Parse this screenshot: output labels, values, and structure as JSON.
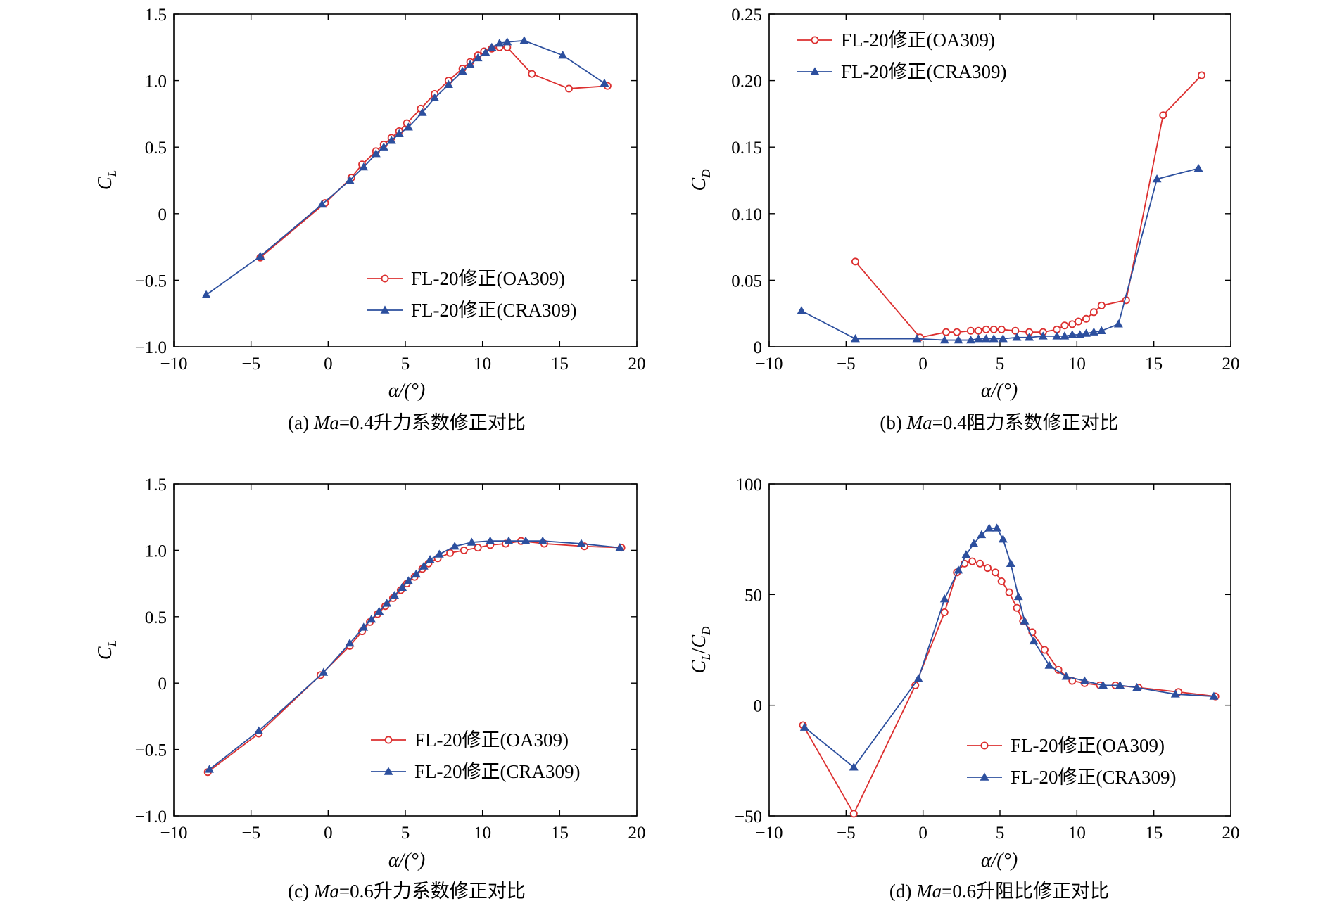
{
  "figure": {
    "colors": {
      "oa309": "#dc2f2f",
      "cra309": "#2c4f9e",
      "axis": "#000000"
    }
  },
  "chart_data": [
    {
      "type": "line",
      "panel": "a",
      "caption": {
        "prefix": "(a) ",
        "mach": "Ma",
        "rest": "=0.4升力系数修正对比"
      },
      "xlabel": "α/(°)",
      "ylabel": {
        "main": "C",
        "sub": "L"
      },
      "xlim": [
        -10,
        20
      ],
      "ylim": [
        -1.0,
        1.5
      ],
      "xticks": [
        -10,
        -5,
        0,
        5,
        10,
        15,
        20
      ],
      "xtick_labels": [
        "−10",
        "−5",
        "0",
        "5",
        "10",
        "15",
        "20"
      ],
      "yticks": [
        -1.0,
        -0.5,
        0,
        0.5,
        1.0,
        1.5
      ],
      "ytick_labels": [
        "−1.0",
        "−0.5",
        "0",
        "0.5",
        "1.0",
        "1.5"
      ],
      "legend_position": "bottom-right",
      "series": [
        {
          "name": "FL-20修正(OA309)",
          "color": "#dc2f2f",
          "marker": "circle",
          "x": [
            -4.4,
            -0.2,
            1.5,
            2.2,
            3.1,
            3.6,
            4.1,
            4.6,
            5.1,
            6.0,
            6.9,
            7.8,
            8.7,
            9.2,
            9.7,
            10.1,
            10.6,
            11.1,
            11.6,
            13.2,
            15.6,
            18.1
          ],
          "y": [
            -0.33,
            0.08,
            0.27,
            0.37,
            0.47,
            0.52,
            0.57,
            0.62,
            0.68,
            0.79,
            0.9,
            1.0,
            1.09,
            1.14,
            1.19,
            1.22,
            1.24,
            1.25,
            1.25,
            1.05,
            0.94,
            0.96
          ]
        },
        {
          "name": "FL-20修正(CRA309)",
          "color": "#2c4f9e",
          "marker": "triangle",
          "x": [
            -7.9,
            -4.4,
            -0.4,
            1.4,
            2.3,
            3.1,
            3.6,
            4.1,
            4.6,
            5.2,
            6.1,
            6.9,
            7.8,
            8.7,
            9.2,
            9.7,
            10.2,
            10.6,
            11.1,
            11.6,
            12.7,
            15.2,
            17.9
          ],
          "y": [
            -0.61,
            -0.32,
            0.07,
            0.25,
            0.35,
            0.45,
            0.5,
            0.55,
            0.6,
            0.65,
            0.76,
            0.87,
            0.97,
            1.07,
            1.12,
            1.17,
            1.21,
            1.25,
            1.28,
            1.29,
            1.3,
            1.19,
            0.98
          ]
        }
      ]
    },
    {
      "type": "line",
      "panel": "b",
      "caption": {
        "prefix": "(b) ",
        "mach": "Ma",
        "rest": "=0.4阻力系数修正对比"
      },
      "xlabel": "α/(°)",
      "ylabel": {
        "main": "C",
        "sub": "D"
      },
      "xlim": [
        -10,
        20
      ],
      "ylim": [
        0,
        0.25
      ],
      "xticks": [
        -10,
        -5,
        0,
        5,
        10,
        15,
        20
      ],
      "xtick_labels": [
        "−10",
        "−5",
        "0",
        "5",
        "10",
        "15",
        "20"
      ],
      "yticks": [
        0,
        0.05,
        0.1,
        0.15,
        0.2,
        0.25
      ],
      "ytick_labels": [
        "0",
        "0.05",
        "0.10",
        "0.15",
        "0.20",
        "0.25"
      ],
      "legend_position": "top-left",
      "series": [
        {
          "name": "FL-20修正(OA309)",
          "color": "#dc2f2f",
          "marker": "circle",
          "x": [
            -4.4,
            -0.2,
            1.5,
            2.2,
            3.1,
            3.6,
            4.1,
            4.6,
            5.1,
            6.0,
            6.9,
            7.8,
            8.7,
            9.2,
            9.7,
            10.1,
            10.6,
            11.1,
            11.6,
            13.2,
            15.6,
            18.1
          ],
          "y": [
            0.064,
            0.007,
            0.011,
            0.011,
            0.012,
            0.012,
            0.013,
            0.013,
            0.013,
            0.012,
            0.011,
            0.011,
            0.013,
            0.016,
            0.017,
            0.019,
            0.021,
            0.026,
            0.031,
            0.035,
            0.174,
            0.204
          ]
        },
        {
          "name": "FL-20修正(CRA309)",
          "color": "#2c4f9e",
          "marker": "triangle",
          "x": [
            -7.9,
            -4.4,
            -0.4,
            1.4,
            2.3,
            3.1,
            3.6,
            4.1,
            4.6,
            5.2,
            6.1,
            6.9,
            7.8,
            8.7,
            9.2,
            9.7,
            10.2,
            10.6,
            11.1,
            11.6,
            12.7,
            15.2,
            17.9
          ],
          "y": [
            0.027,
            0.006,
            0.006,
            0.005,
            0.005,
            0.005,
            0.006,
            0.006,
            0.006,
            0.006,
            0.007,
            0.007,
            0.008,
            0.008,
            0.008,
            0.009,
            0.009,
            0.01,
            0.011,
            0.012,
            0.017,
            0.126,
            0.134
          ]
        }
      ]
    },
    {
      "type": "line",
      "panel": "c",
      "caption": {
        "prefix": "(c) ",
        "mach": "Ma",
        "rest": "=0.6升力系数修正对比"
      },
      "xlabel": "α/(°)",
      "ylabel": {
        "main": "C",
        "sub": "L"
      },
      "xlim": [
        -10,
        20
      ],
      "ylim": [
        -1.0,
        1.5
      ],
      "xticks": [
        -10,
        -5,
        0,
        5,
        10,
        15,
        20
      ],
      "xtick_labels": [
        "−10",
        "−5",
        "0",
        "5",
        "10",
        "15",
        "20"
      ],
      "yticks": [
        -1.0,
        -0.5,
        0,
        0.5,
        1.0,
        1.5
      ],
      "ytick_labels": [
        "−1.0",
        "−0.5",
        "0",
        "0.5",
        "1.0",
        "1.5"
      ],
      "legend_position": "bottom-right",
      "series": [
        {
          "name": "FL-20修正(OA309)",
          "color": "#dc2f2f",
          "marker": "circle",
          "x": [
            -7.8,
            -4.5,
            -0.5,
            1.4,
            2.2,
            2.7,
            3.2,
            3.7,
            4.2,
            4.7,
            5.1,
            5.6,
            6.1,
            6.5,
            7.1,
            7.9,
            8.8,
            9.7,
            10.5,
            11.5,
            12.5,
            14.0,
            16.6,
            19.0
          ],
          "y": [
            -0.67,
            -0.38,
            0.06,
            0.28,
            0.39,
            0.46,
            0.52,
            0.58,
            0.64,
            0.7,
            0.75,
            0.8,
            0.86,
            0.9,
            0.94,
            0.98,
            1.0,
            1.02,
            1.04,
            1.05,
            1.07,
            1.05,
            1.03,
            1.02
          ]
        },
        {
          "name": "FL-20修正(CRA309)",
          "color": "#2c4f9e",
          "marker": "triangle",
          "x": [
            -7.7,
            -4.5,
            -0.3,
            1.4,
            2.3,
            2.8,
            3.3,
            3.8,
            4.3,
            4.8,
            5.2,
            5.7,
            6.2,
            6.6,
            7.2,
            8.2,
            9.3,
            10.5,
            11.7,
            12.8,
            13.9,
            16.4,
            18.9
          ],
          "y": [
            -0.65,
            -0.36,
            0.08,
            0.3,
            0.42,
            0.48,
            0.54,
            0.6,
            0.66,
            0.72,
            0.77,
            0.82,
            0.88,
            0.93,
            0.97,
            1.03,
            1.06,
            1.07,
            1.07,
            1.07,
            1.07,
            1.05,
            1.02
          ]
        }
      ]
    },
    {
      "type": "line",
      "panel": "d",
      "caption": {
        "prefix": "(d) ",
        "mach": "Ma",
        "rest": "=0.6升阻比修正对比"
      },
      "xlabel": "α/(°)",
      "ylabel": {
        "main": "C",
        "sub": "L",
        "slash": "/",
        "main2": "C",
        "sub2": "D"
      },
      "xlim": [
        -10,
        20
      ],
      "ylim": [
        -50,
        100
      ],
      "xticks": [
        -10,
        -5,
        0,
        5,
        10,
        15,
        20
      ],
      "xtick_labels": [
        "−10",
        "−5",
        "0",
        "5",
        "10",
        "15",
        "20"
      ],
      "yticks": [
        -50,
        0,
        50,
        100
      ],
      "ytick_labels": [
        "−50",
        "0",
        "50",
        "100"
      ],
      "legend_position": "bottom-right",
      "series": [
        {
          "name": "FL-20修正(OA309)",
          "color": "#dc2f2f",
          "marker": "circle",
          "x": [
            -7.8,
            -4.5,
            -0.5,
            1.4,
            2.2,
            2.7,
            3.2,
            3.7,
            4.2,
            4.7,
            5.1,
            5.6,
            6.1,
            6.5,
            7.1,
            7.9,
            8.8,
            9.7,
            10.5,
            11.5,
            12.5,
            14.0,
            16.6,
            19.0
          ],
          "y": [
            -9,
            -49,
            9,
            42,
            60,
            64,
            65,
            64,
            62,
            60,
            56,
            51,
            44,
            38,
            33,
            25,
            16,
            11,
            10,
            9,
            9,
            8,
            6,
            4
          ]
        },
        {
          "name": "FL-20修正(CRA309)",
          "color": "#2c4f9e",
          "marker": "triangle",
          "x": [
            -7.7,
            -4.5,
            -0.3,
            1.4,
            2.3,
            2.8,
            3.3,
            3.8,
            4.3,
            4.8,
            5.2,
            5.7,
            6.2,
            6.6,
            7.2,
            8.2,
            9.3,
            10.5,
            11.7,
            12.8,
            13.9,
            16.4,
            18.9
          ],
          "y": [
            -10,
            -28,
            12,
            48,
            61,
            68,
            73,
            77,
            80,
            80,
            75,
            64,
            49,
            38,
            29,
            18,
            13,
            11,
            9,
            9,
            8,
            5,
            4
          ]
        }
      ]
    }
  ]
}
